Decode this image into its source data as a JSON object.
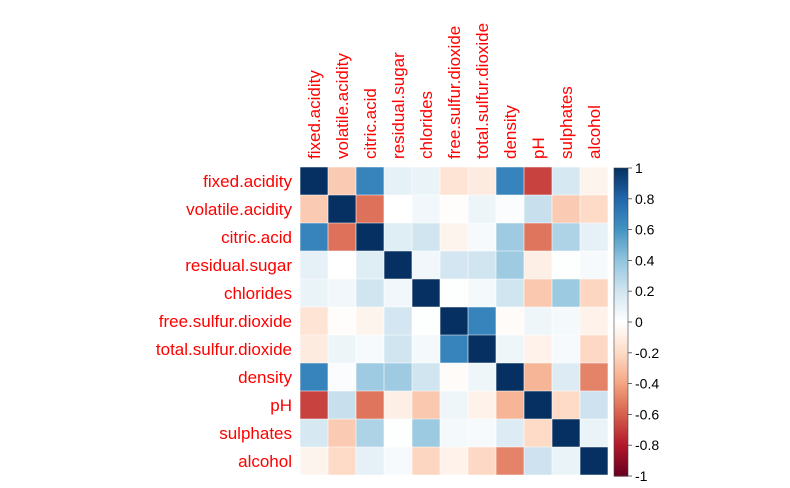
{
  "chart_data": {
    "type": "heatmap",
    "title": "",
    "variables": [
      "fixed.acidity",
      "volatile.acidity",
      "citric.acid",
      "residual.sugar",
      "chlorides",
      "free.sulfur.dioxide",
      "total.sulfur.dioxide",
      "density",
      "pH",
      "sulphates",
      "alcohol"
    ],
    "matrix": [
      [
        1.0,
        -0.26,
        0.67,
        0.11,
        0.09,
        -0.15,
        -0.11,
        0.67,
        -0.68,
        0.18,
        -0.06
      ],
      [
        -0.26,
        1.0,
        -0.55,
        0.0,
        0.06,
        -0.01,
        0.08,
        0.02,
        0.23,
        -0.26,
        -0.2
      ],
      [
        0.67,
        -0.55,
        1.0,
        0.14,
        0.2,
        -0.06,
        0.04,
        0.36,
        -0.54,
        0.31,
        0.11
      ],
      [
        0.11,
        0.0,
        0.14,
        1.0,
        0.06,
        0.19,
        0.2,
        0.36,
        -0.09,
        0.01,
        0.04
      ],
      [
        0.09,
        0.06,
        0.2,
        0.06,
        1.0,
        0.01,
        0.05,
        0.2,
        -0.27,
        0.37,
        -0.22
      ],
      [
        -0.15,
        -0.01,
        -0.06,
        0.19,
        0.01,
        1.0,
        0.67,
        -0.02,
        0.07,
        0.05,
        -0.07
      ],
      [
        -0.11,
        0.08,
        0.04,
        0.2,
        0.05,
        0.67,
        1.0,
        0.07,
        -0.07,
        0.04,
        -0.21
      ],
      [
        0.67,
        0.02,
        0.36,
        0.36,
        0.2,
        -0.02,
        0.07,
        1.0,
        -0.34,
        0.15,
        -0.5
      ],
      [
        -0.68,
        0.23,
        -0.54,
        -0.09,
        -0.27,
        0.07,
        -0.07,
        -0.34,
        1.0,
        -0.2,
        0.21
      ],
      [
        0.18,
        -0.26,
        0.31,
        0.01,
        0.37,
        0.05,
        0.04,
        0.15,
        -0.2,
        1.0,
        0.09
      ],
      [
        -0.06,
        -0.2,
        0.11,
        0.04,
        -0.22,
        -0.07,
        -0.21,
        -0.5,
        0.21,
        0.09,
        1.0
      ]
    ],
    "color_scale": {
      "range": [
        -1,
        1
      ],
      "ticks": [
        "-1",
        "-0.8",
        "-0.6",
        "-0.4",
        "-0.2",
        "0",
        "0.2",
        "0.4",
        "0.6",
        "0.8",
        "1"
      ],
      "colors": [
        "#67001f",
        "#b2182b",
        "#d6604d",
        "#f4a582",
        "#fddbc7",
        "#ffffff",
        "#d1e5f0",
        "#92c5de",
        "#4393c3",
        "#2166ac",
        "#053061"
      ]
    },
    "label_color": "#ff0000",
    "legend_position": "right"
  }
}
